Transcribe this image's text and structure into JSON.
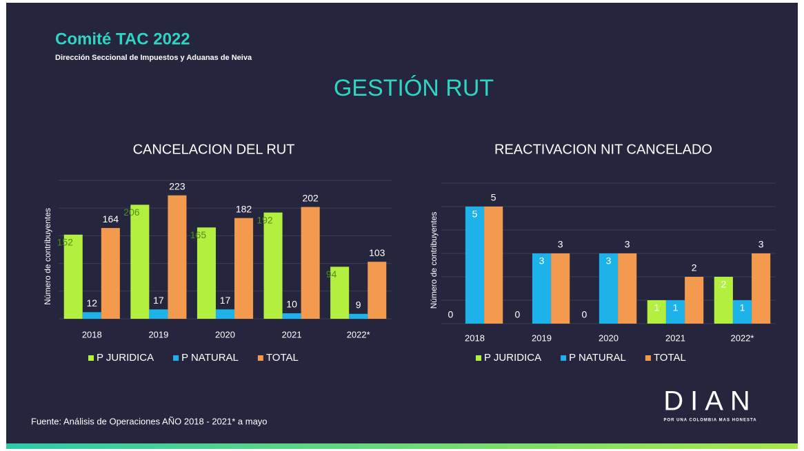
{
  "header": {
    "title": "Comité TAC 2022",
    "subtitle": "Dirección Seccional de Impuestos y Aduanas de Neiva",
    "heading": "GESTIÓN RUT"
  },
  "chart_data": [
    {
      "type": "bar",
      "title": "CANCELACION DEL RUT",
      "y_label": "Número de contribuyentes",
      "categories": [
        "2018",
        "2019",
        "2020",
        "2021",
        "2022*"
      ],
      "series": [
        {
          "name": "P JURIDICA",
          "color": "#b2ef3e",
          "values": [
            152,
            206,
            165,
            192,
            94
          ]
        },
        {
          "name": "P NATURAL",
          "color": "#1db2ea",
          "values": [
            12,
            17,
            17,
            10,
            9
          ]
        },
        {
          "name": "TOTAL",
          "color": "#f39a4e",
          "values": [
            164,
            223,
            182,
            202,
            103
          ]
        }
      ],
      "ylim": [
        0,
        250
      ],
      "yticks": [
        0,
        50,
        100,
        150,
        200,
        250
      ],
      "grid": true,
      "legend": "bottom"
    },
    {
      "type": "bar",
      "title": "REACTIVACION NIT CANCELADO",
      "y_label": "Número de contribuyentes",
      "categories": [
        "2018",
        "2019",
        "2020",
        "2021",
        "2022*"
      ],
      "series": [
        {
          "name": "P JURIDICA",
          "color": "#b2ef3e",
          "values": [
            0,
            0,
            0,
            1,
            2
          ]
        },
        {
          "name": "P NATURAL",
          "color": "#1db2ea",
          "values": [
            5,
            3,
            3,
            1,
            1
          ]
        },
        {
          "name": "TOTAL",
          "color": "#f39a4e",
          "values": [
            5,
            3,
            3,
            2,
            3
          ]
        }
      ],
      "ylim": [
        0,
        6
      ],
      "yticks": [
        0,
        1,
        2,
        3,
        4,
        5,
        6
      ],
      "grid": true,
      "legend": "bottom"
    }
  ],
  "footer": {
    "source": "Fuente: Análisis de Operaciones AÑO 2018  - 2021* a mayo",
    "logo": "DIAN",
    "tagline": "POR UNA COLOMBIA MAS HONESTA"
  }
}
